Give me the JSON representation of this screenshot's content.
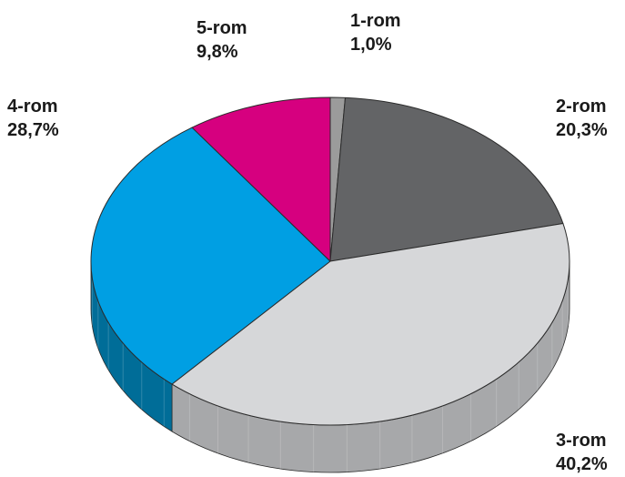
{
  "chart_data": {
    "type": "pie",
    "style": "3d",
    "title": "",
    "legend": "none",
    "slices": [
      {
        "label": "1-rom",
        "value": 1.0,
        "value_text": "1,0%",
        "color": "#9b9b9b",
        "side_color": "#7d7d7d"
      },
      {
        "label": "2-rom",
        "value": 20.3,
        "value_text": "20,3%",
        "color": "#636466",
        "side_color": "#4a4b4d"
      },
      {
        "label": "3-rom",
        "value": 40.2,
        "value_text": "40,2%",
        "color": "#d6d7d9",
        "side_color": "#a7a8aa"
      },
      {
        "label": "4-rom",
        "value": 28.7,
        "value_text": "28,7%",
        "color": "#009fe3",
        "side_color": "#006d98"
      },
      {
        "label": "5-rom",
        "value": 9.8,
        "value_text": "9,8%",
        "color": "#d6007f",
        "side_color": "#9c005c"
      }
    ]
  }
}
